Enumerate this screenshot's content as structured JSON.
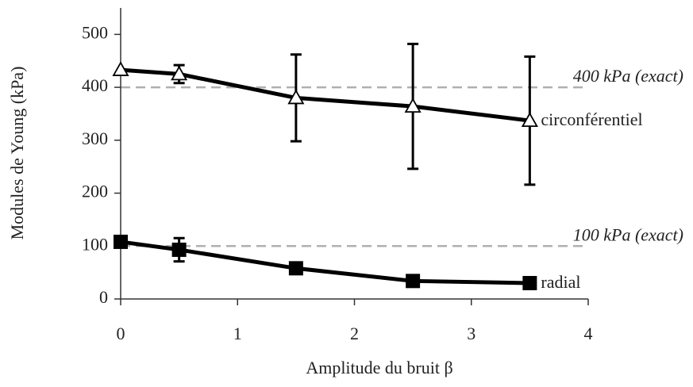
{
  "chart_data": {
    "type": "line",
    "x_label": "Amplitude du bruit β",
    "y_label": "Modules de Young (kPa)",
    "xlim": [
      0,
      4
    ],
    "xticks": [
      0,
      1,
      2,
      3,
      4
    ],
    "ylim": [
      0,
      550
    ],
    "yticks": [
      0,
      100,
      200,
      300,
      400,
      500
    ],
    "reference_lines": [
      {
        "value": 400,
        "label": "400 kPa (exact)",
        "color": "#b0b0b0"
      },
      {
        "value": 100,
        "label": "100 kPa (exact)",
        "color": "#b0b0b0"
      }
    ],
    "series": [
      {
        "name": "circonférentiel",
        "color": "#000000",
        "marker": "triangle",
        "x": [
          0,
          0.5,
          1.5,
          2.5,
          3.5
        ],
        "values": [
          433,
          425,
          380,
          364,
          337
        ],
        "errors": [
          null,
          17,
          82,
          118,
          121
        ]
      },
      {
        "name": "radial",
        "color": "#000000",
        "marker": "square",
        "x": [
          0,
          0.5,
          1.5,
          2.5,
          3.5
        ],
        "values": [
          108,
          93,
          58,
          34,
          30
        ],
        "errors": [
          null,
          22,
          null,
          null,
          null
        ]
      }
    ]
  }
}
